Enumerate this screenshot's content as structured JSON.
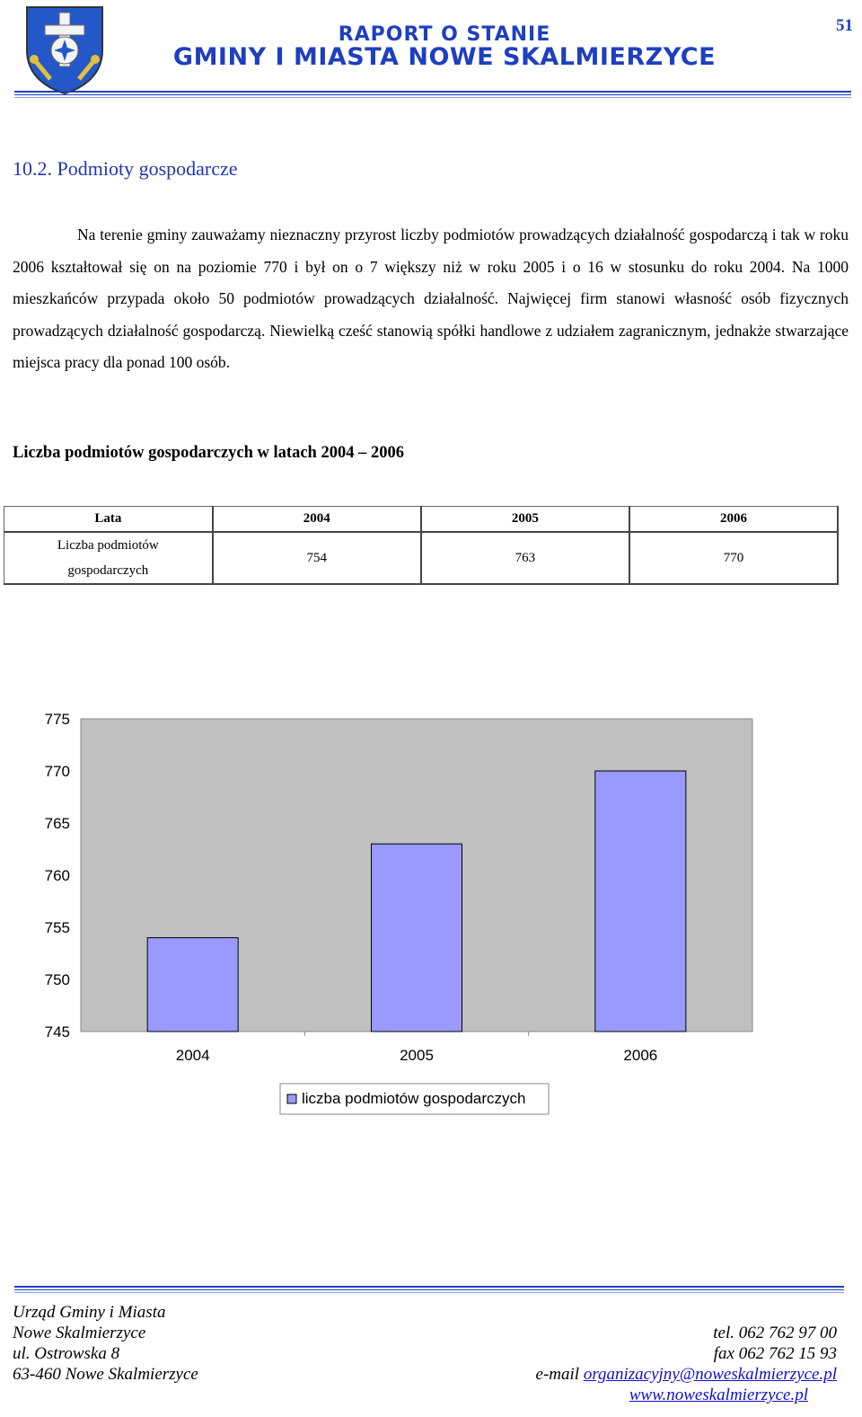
{
  "header": {
    "line1": "RAPORT O STANIE",
    "line2": "GMINY I MIASTA NOWE SKALMIERZYCE",
    "page_number": "51",
    "accent_color": "#1e3fbf",
    "crest_icon": "coat-of-arms-icon"
  },
  "section": {
    "title": "10.2. Podmioty gospodarcze",
    "paragraph": "Na terenie gminy zauważamy nieznaczny przyrost liczby podmiotów prowadzących działalność gospodarczą i tak w roku 2006 kształtował się on na poziomie 770 i był on o 7 większy niż w roku 2005 i o 16 w stosunku do roku 2004. Na 1000 mieszkańców przypada około 50 podmiotów prowadzących działalność. Najwięcej firm stanowi własność osób fizycznych prowadzących działalność gospodarczą. Niewielką cześć stanowią spółki handlowe z udziałem zagranicznym, jednakże stwarzające miejsca pracy dla ponad 100 osób."
  },
  "table": {
    "caption": "Liczba podmiotów gospodarczych  w latach 2004 – 2006",
    "header": [
      "Lata",
      "2004",
      "2005",
      "2006"
    ],
    "row_label_line1": "Liczba podmiotów",
    "row_label_line2": "gospodarczych",
    "values": [
      "754",
      "763",
      "770"
    ]
  },
  "chart_data": {
    "type": "bar",
    "categories": [
      "2004",
      "2005",
      "2006"
    ],
    "series": [
      {
        "name": "liczba podmiotów gospodarczych",
        "values": [
          754,
          763,
          770
        ],
        "color": "#9999ff"
      }
    ],
    "ylim": [
      745,
      775
    ],
    "yticks": [
      "775",
      "770",
      "765",
      "760",
      "755",
      "750",
      "745"
    ],
    "grid": false,
    "plot_background": "#c0c0c0",
    "legend": "bottom"
  },
  "footer": {
    "left_lines": [
      "Urząd Gminy i Miasta",
      "Nowe Skalmierzyce",
      "ul. Ostrowska 8",
      "63-460 Nowe Skalmierzyce"
    ],
    "tel": "tel. 062 762 97 00",
    "fax": "fax 062 762 15 93",
    "email_label": "e-mail ",
    "email": "organizacyjny@noweskalmierzyce.pl",
    "website": "www.noweskalmierzyce.pl"
  }
}
